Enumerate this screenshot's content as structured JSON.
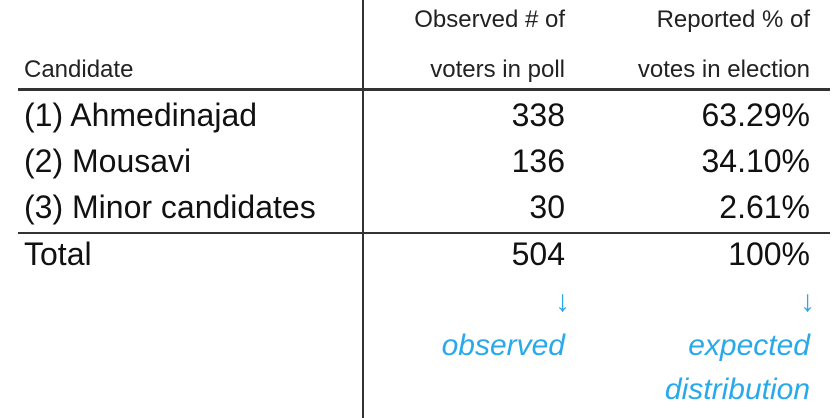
{
  "table": {
    "headers": {
      "candidate": "Candidate",
      "observed_line1": "Observed # of",
      "observed_line2": "voters in poll",
      "reported_line1": "Reported % of",
      "reported_line2": "votes in election"
    },
    "rows": [
      {
        "candidate": "(1) Ahmedinajad",
        "observed": "338",
        "reported": "63.29%"
      },
      {
        "candidate": "(2) Mousavi",
        "observed": "136",
        "reported": "34.10%"
      },
      {
        "candidate": "(3) Minor candidates",
        "observed": "30",
        "reported": "2.61%"
      }
    ],
    "total": {
      "label": "Total",
      "observed": "504",
      "reported": "100%"
    }
  },
  "annotations": {
    "arrow": "↓",
    "observed_label": "observed",
    "expected_line1": "expected",
    "expected_line2": "distribution",
    "color": "#29a9ea"
  }
}
